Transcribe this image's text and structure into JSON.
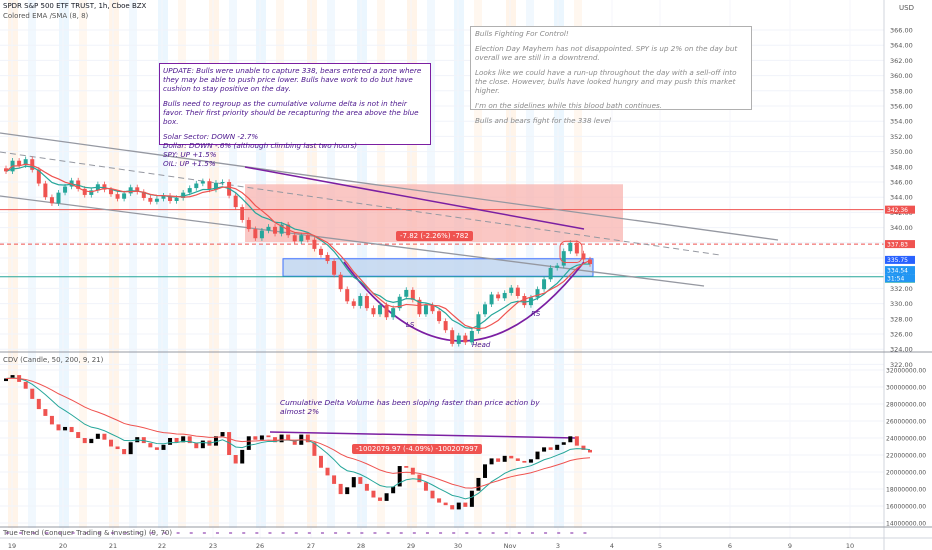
{
  "header": {
    "symbol_title": "SPDR S&P 500 ETF TRUST, 1h, Cboe BZX",
    "indicator_ema_sma": "Colored EMA /SMA (8, 8)",
    "currency": "USD"
  },
  "notes": {
    "update": {
      "p1": "UPDATE: Bulls were unable to capture 338, bears entered a zone where they may be able to push price lower. Bulls have work to do but have cushion to stay positive on the day.",
      "p2": "Bulls need to regroup as the cumulative volume delta is not in their favor. Their first priority should be recapturing the area above the blue box.",
      "lines": [
        "Solar Sector: DOWN -2.7%",
        "Dollar: DOWN -.6% (although climbing last two hours)",
        "SPY: UP +1.5%",
        "OIL: UP +1.5%"
      ]
    },
    "right": {
      "title": "Bulls Fighting For Control!",
      "p1": "Election Day Mayhem has not disappointed. SPY is up 2% on the day but overall we are still in a downtrend.",
      "p2": "Looks like we could have a run-up throughout the day with a sell-off into the close. However, bulls have looked hungry and may push this market higher.",
      "p3": "I'm on the sidelines while this blood bath continues.",
      "p4": "Bulls and bears fight for the 338 level"
    },
    "cdv_note": "Cumulative Delta Volume has been sloping faster than price action by almost 2%"
  },
  "labels": {
    "ls": "LS",
    "head": "Head",
    "rs": "RS",
    "price_measure": "-7.82 (-2.26%) -782",
    "cdv_measure": "-1002079.97 (-4.09%) -100207997",
    "cdv_indicator": "CDV (Candle, 50, 200, 9, 21)",
    "true_trend": "True Trend (Conquer Trading & Investing) (9, 70)"
  },
  "price_tags": [
    {
      "text": "342.36",
      "value": 342.36,
      "color": "#ef5350"
    },
    {
      "text": "337.83",
      "value": 337.83,
      "color": "#ef5350"
    },
    {
      "text": "335.75",
      "value": 335.75,
      "color": "#2962ff"
    },
    {
      "text": "334.54",
      "value": 334.54,
      "color": "#2196f3"
    },
    {
      "text": "31:54",
      "value": 334.54,
      "color": "#2196f3"
    },
    {
      "text": "333.54",
      "value": 333.54,
      "color": "#26a69a"
    }
  ],
  "colors": {
    "up": "#26a69a",
    "down": "#ef5350",
    "ema": "#26a69a",
    "sma": "#ef5350",
    "purple": "#7b1fa2",
    "red_zone": "#f8b4b0",
    "blue_box": "#c5d9f1"
  },
  "chart_data": [
    {
      "type": "candlestick",
      "title": "SPDR S&P 500 ETF TRUST, 1h, Cboe BZX",
      "ylabel": "USD",
      "ylim": [
        320,
        368
      ],
      "y_ticks": [
        322,
        324,
        326,
        328,
        330,
        332,
        334,
        336,
        338,
        340,
        342,
        344,
        346,
        348,
        350,
        352,
        354,
        356,
        358,
        360,
        362,
        364,
        366
      ],
      "x_ticks": [
        "19",
        "20",
        "21",
        "22",
        "23",
        "26",
        "27",
        "28",
        "29",
        "30",
        "Nov",
        "3",
        "4",
        "5",
        "6",
        "9",
        "10"
      ],
      "series": [
        {
          "name": "SPY",
          "values": [
            347.4,
            348.8,
            348.2,
            349.0,
            347.6,
            345.8,
            344.0,
            343.2,
            344.6,
            345.4,
            346.2,
            345.1,
            344.3,
            344.9,
            345.7,
            345.0,
            344.4,
            343.8,
            344.5,
            345.3,
            344.7,
            343.9,
            343.4,
            343.8,
            344.2,
            343.5,
            343.9,
            344.6,
            345.2,
            345.8,
            346.1,
            345.0,
            345.9,
            346.0,
            344.2,
            342.7,
            341.0,
            339.8,
            338.6,
            339.6,
            340.1,
            339.2,
            340.4,
            339.0,
            338.2,
            339.0,
            338.4,
            337.2,
            336.4,
            335.6,
            333.8,
            331.9,
            330.3,
            329.7,
            331.0,
            329.4,
            328.6,
            329.8,
            328.2,
            329.4,
            330.9,
            331.8,
            330.5,
            328.6,
            329.8,
            329.0,
            327.7,
            326.5,
            324.7,
            325.8,
            324.9,
            326.4,
            328.6,
            329.9,
            331.2,
            330.7,
            331.4,
            332.1,
            331.0,
            329.8,
            330.8,
            331.9,
            333.2,
            334.7,
            335.0,
            336.9,
            338.0,
            336.6,
            335.8,
            335.2
          ]
        }
      ]
    },
    {
      "type": "candlestick",
      "title": "CDV (Candle, 50, 200, 9, 21)",
      "ylim": [
        13500000,
        33000000
      ],
      "y_ticks": [
        14000000,
        16000000,
        18000000,
        20000000,
        22000000,
        24000000,
        26000000,
        28000000,
        30000000,
        32000000
      ],
      "y_tick_labels": [
        "14000000.00",
        "16000000.00",
        "18000000.00",
        "20000000.00",
        "22000000.00",
        "24000000.00",
        "26000000.00",
        "28000000.00",
        "30000000.00",
        "32000000.00"
      ],
      "series": [
        {
          "name": "CDV",
          "values": [
            31000000,
            31400000,
            30600000,
            29800000,
            28600000,
            27400000,
            26600000,
            25600000,
            24900000,
            25300000,
            24700000,
            24000000,
            23400000,
            23900000,
            24500000,
            23800000,
            23000000,
            22700000,
            22100000,
            23500000,
            24100000,
            23400000,
            22900000,
            22600000,
            23200000,
            24000000,
            23500000,
            24200000,
            23400000,
            22800000,
            23700000,
            23100000,
            24200000,
            24700000,
            22000000,
            21000000,
            22600000,
            24200000,
            23800000,
            24300000,
            24100000,
            23500000,
            24400000,
            23800000,
            23200000,
            24400000,
            23500000,
            21900000,
            20500000,
            19600000,
            18600000,
            17400000,
            18200000,
            19400000,
            18600000,
            17800000,
            17000000,
            16600000,
            17500000,
            18300000,
            20700000,
            20500000,
            19700000,
            18800000,
            17800000,
            16900000,
            16400000,
            16100000,
            15600000,
            16400000,
            15900000,
            17800000,
            19300000,
            20900000,
            21600000,
            21200000,
            21900000,
            21600000,
            21300000,
            21100000,
            21500000,
            22400000,
            22900000,
            22600000,
            23200000,
            23500000,
            24200000,
            23100000,
            22600000,
            22300000
          ]
        }
      ]
    }
  ]
}
